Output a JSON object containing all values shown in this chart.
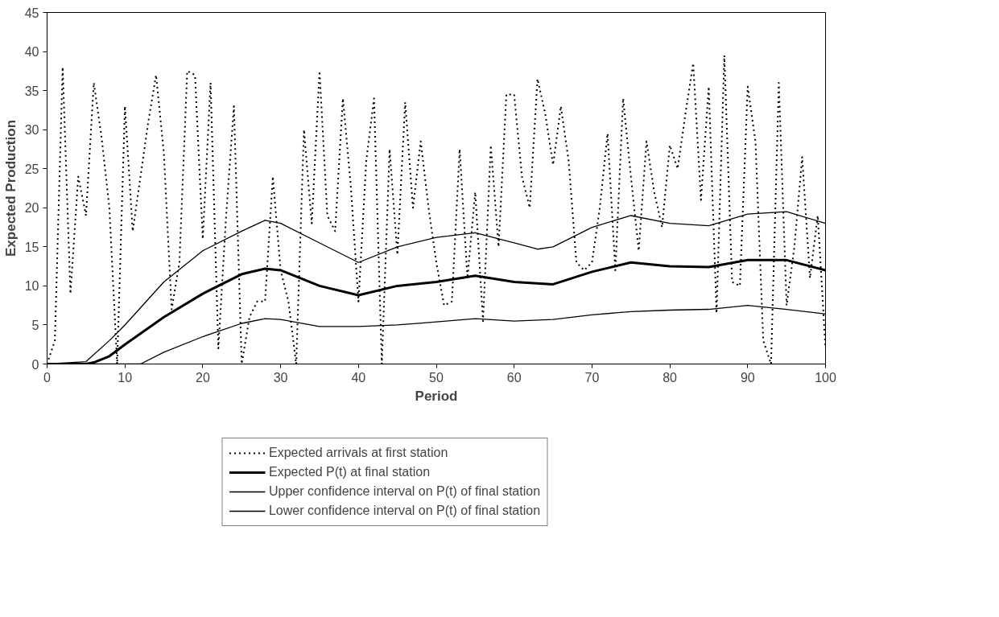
{
  "chart_data": {
    "type": "line",
    "xlabel": "Period",
    "ylabel": "Expected Production",
    "xlim": [
      0,
      100
    ],
    "ylim": [
      0,
      45
    ],
    "xticks": [
      0,
      10,
      20,
      30,
      40,
      50,
      60,
      70,
      80,
      90,
      100
    ],
    "yticks": [
      0,
      5,
      10,
      15,
      20,
      25,
      30,
      35,
      40,
      45
    ],
    "grid": false,
    "legend": "bottom",
    "marker": "none",
    "series": [
      {
        "name": "Expected arrivals at first station",
        "color": "#000000",
        "line_style": "dotted",
        "x": [
          0,
          1,
          2,
          3,
          4,
          5,
          6,
          7,
          8,
          9,
          10,
          11,
          12,
          13,
          14,
          15,
          16,
          17,
          18,
          19,
          20,
          21,
          22,
          23,
          24,
          25,
          26,
          27,
          28,
          29,
          30,
          31,
          32,
          33,
          34,
          35,
          36,
          37,
          38,
          39,
          40,
          41,
          42,
          43,
          44,
          45,
          46,
          47,
          48,
          49,
          50,
          51,
          52,
          53,
          54,
          55,
          56,
          57,
          58,
          59,
          60,
          61,
          62,
          63,
          64,
          65,
          66,
          67,
          68,
          69,
          70,
          71,
          72,
          73,
          74,
          75,
          76,
          77,
          78,
          79,
          80,
          81,
          82,
          83,
          84,
          85,
          86,
          87,
          88,
          89,
          90,
          91,
          92,
          93,
          94,
          95,
          96,
          97,
          98,
          99,
          100
        ],
        "values": [
          0,
          3,
          38,
          9,
          24,
          19,
          36,
          29,
          20,
          0,
          33,
          17,
          24,
          31,
          37,
          27,
          7,
          13,
          37.5,
          37,
          16,
          36,
          2,
          19,
          33,
          0,
          6,
          8,
          8,
          24,
          12,
          8,
          0,
          30,
          18,
          37.5,
          19,
          17,
          34,
          23,
          8,
          26,
          34,
          0,
          27.5,
          14,
          33.5,
          20,
          28.5,
          20,
          13,
          7.5,
          8,
          27.5,
          11,
          22,
          5.5,
          28,
          15,
          34.5,
          34.5,
          24,
          20,
          36.5,
          32,
          25.5,
          33,
          26,
          13,
          12,
          13,
          20,
          29.5,
          12,
          34,
          24,
          14.5,
          28.5,
          22,
          17.5,
          28,
          25,
          32,
          38.5,
          21,
          35.5,
          6.5,
          39.5,
          10.5,
          10,
          35.5,
          28.5,
          3,
          0,
          36,
          7.5,
          15,
          26.5,
          11,
          19,
          2
        ]
      },
      {
        "name": "Expected P(t) at final station",
        "color": "#000000",
        "line_style": "solid",
        "x": [
          0,
          5,
          6,
          8,
          10,
          15,
          20,
          25,
          28,
          30,
          35,
          40,
          45,
          50,
          55,
          60,
          65,
          70,
          75,
          80,
          85,
          90,
          95,
          100
        ],
        "values": [
          0,
          0,
          0.2,
          1,
          2.5,
          6,
          9,
          11.5,
          12.2,
          12,
          10,
          8.8,
          10,
          10.5,
          11.3,
          10.5,
          10.2,
          11.8,
          13,
          12.5,
          12.4,
          13.3,
          13.3,
          12
        ]
      },
      {
        "name": "Upper confidence interval on P(t) of final station",
        "color": "#000000",
        "line_style": "solid",
        "x": [
          0,
          5,
          8,
          10,
          15,
          20,
          25,
          28,
          30,
          35,
          40,
          45,
          50,
          55,
          60,
          63,
          65,
          70,
          75,
          80,
          85,
          90,
          95,
          100
        ],
        "values": [
          0,
          0.3,
          3,
          5,
          10.5,
          14.5,
          17,
          18.4,
          18,
          15.5,
          13,
          15,
          16.2,
          16.8,
          15.5,
          14.7,
          15,
          17.5,
          19,
          18,
          17.7,
          19.2,
          19.5,
          18
        ]
      },
      {
        "name": "Lower confidence interval on P(t) of final station",
        "color": "#000000",
        "line_style": "solid",
        "x": [
          0,
          10,
          12,
          15,
          20,
          25,
          28,
          30,
          35,
          40,
          45,
          50,
          55,
          60,
          65,
          70,
          75,
          80,
          85,
          90,
          95,
          100
        ],
        "values": [
          0,
          0,
          0,
          1.5,
          3.5,
          5.2,
          5.8,
          5.7,
          4.8,
          4.8,
          5,
          5.4,
          5.8,
          5.5,
          5.7,
          6.3,
          6.7,
          6.9,
          7,
          7.5,
          7,
          6.4
        ]
      }
    ]
  }
}
